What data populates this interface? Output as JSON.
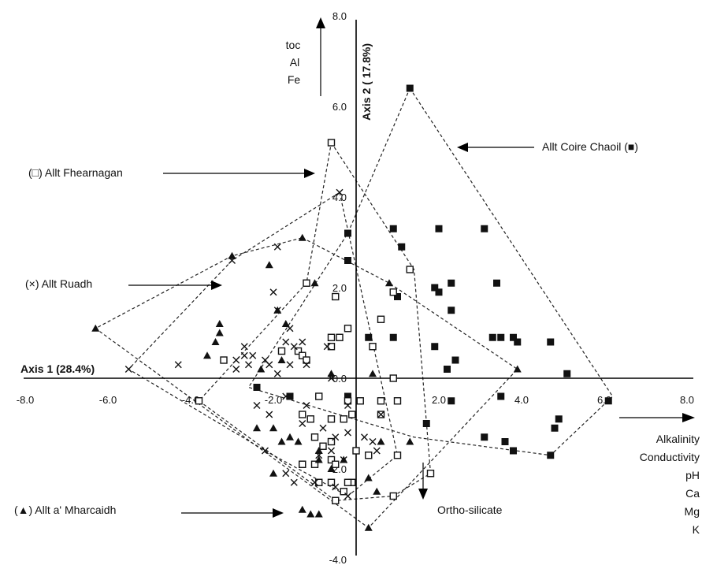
{
  "chart_data": {
    "type": "scatter",
    "title": "",
    "xlim": [
      -8,
      8
    ],
    "ylim": [
      -4,
      8
    ],
    "x_ticks": [
      "-8.0",
      "-6.0",
      "-4.0",
      "-2.0",
      "0.0",
      "2.0",
      "4.0",
      "6.0",
      "8.0"
    ],
    "y_ticks": [
      "-4.0",
      "-2.0",
      "0.0",
      "2.0",
      "4.0",
      "6.0",
      "8.0"
    ],
    "x_tick_values": [
      -8,
      -6,
      -4,
      -2,
      0,
      2,
      4,
      6,
      8
    ],
    "y_tick_values": [
      -4,
      -2,
      0,
      2,
      4,
      6,
      8
    ],
    "xlabel": "Axis 1 (28.4%)",
    "ylabel": "Axis 2 ( 17.8%)",
    "vectors": {
      "up": [
        "toc",
        "Al",
        "Fe"
      ],
      "right": [
        "Alkalinity",
        "Conductivity",
        "pH",
        "Ca",
        "Mg",
        "K"
      ],
      "down": [
        "Ortho-silicate"
      ]
    },
    "series": [
      {
        "name": "Allt Coire Chaoil",
        "legend": "Allt Coire Chaoil (■)",
        "marker": "filled-square",
        "points": [
          [
            1.3,
            6.4
          ],
          [
            0.9,
            3.3
          ],
          [
            1.1,
            2.9
          ],
          [
            2.0,
            3.3
          ],
          [
            3.1,
            3.3
          ],
          [
            -0.2,
            3.2
          ],
          [
            -0.2,
            2.6
          ],
          [
            1.9,
            2.0
          ],
          [
            2.3,
            2.1
          ],
          [
            3.4,
            2.1
          ],
          [
            2.0,
            1.9
          ],
          [
            1.0,
            1.8
          ],
          [
            2.3,
            1.5
          ],
          [
            0.9,
            0.9
          ],
          [
            0.3,
            0.9
          ],
          [
            3.3,
            0.9
          ],
          [
            3.5,
            0.9
          ],
          [
            3.8,
            0.9
          ],
          [
            3.9,
            0.8
          ],
          [
            4.7,
            0.8
          ],
          [
            1.9,
            0.7
          ],
          [
            2.4,
            0.4
          ],
          [
            2.2,
            0.2
          ],
          [
            5.1,
            0.1
          ],
          [
            -2.4,
            -0.2
          ],
          [
            -1.6,
            -0.4
          ],
          [
            -0.2,
            -0.4
          ],
          [
            2.3,
            -0.5
          ],
          [
            3.5,
            -0.4
          ],
          [
            6.1,
            -0.5
          ],
          [
            4.9,
            -0.9
          ],
          [
            1.7,
            -1.0
          ],
          [
            4.8,
            -1.1
          ],
          [
            3.1,
            -1.3
          ],
          [
            3.6,
            -1.4
          ],
          [
            3.8,
            -1.6
          ],
          [
            4.7,
            -1.7
          ]
        ]
      },
      {
        "name": "Allt Fhearnagan",
        "legend": "(□) Allt Fhearnagan",
        "marker": "open-square",
        "points": [
          [
            -0.6,
            5.2
          ],
          [
            1.3,
            2.4
          ],
          [
            -1.2,
            2.1
          ],
          [
            -0.5,
            1.8
          ],
          [
            0.9,
            1.9
          ],
          [
            -0.2,
            1.1
          ],
          [
            0.6,
            1.3
          ],
          [
            -0.6,
            0.9
          ],
          [
            -0.4,
            0.9
          ],
          [
            -0.6,
            0.7
          ],
          [
            0.4,
            0.7
          ],
          [
            -1.8,
            0.6
          ],
          [
            -1.4,
            0.6
          ],
          [
            -1.3,
            0.5
          ],
          [
            -1.2,
            0.4
          ],
          [
            -3.2,
            0.4
          ],
          [
            0.9,
            0.0
          ],
          [
            -3.8,
            -0.5
          ],
          [
            -0.9,
            -0.4
          ],
          [
            -0.2,
            -0.5
          ],
          [
            0.1,
            -0.5
          ],
          [
            0.6,
            -0.5
          ],
          [
            1.0,
            -0.5
          ],
          [
            0.6,
            -0.8
          ],
          [
            -0.1,
            -0.8
          ],
          [
            -0.3,
            -0.9
          ],
          [
            -1.3,
            -0.8
          ],
          [
            -1.1,
            -0.9
          ],
          [
            -0.6,
            -0.9
          ],
          [
            -1.0,
            -1.3
          ],
          [
            -0.8,
            -1.5
          ],
          [
            -0.6,
            -1.4
          ],
          [
            0.0,
            -1.6
          ],
          [
            0.3,
            -1.7
          ],
          [
            1.0,
            -1.7
          ],
          [
            -0.6,
            -1.8
          ],
          [
            -1.3,
            -1.9
          ],
          [
            -1.3,
            -1.9
          ],
          [
            -0.5,
            -1.9
          ],
          [
            -1.0,
            -1.9
          ],
          [
            -0.9,
            -2.3
          ],
          [
            -0.1,
            -2.3
          ],
          [
            1.8,
            -2.1
          ],
          [
            -0.6,
            -2.3
          ],
          [
            -0.2,
            -2.3
          ],
          [
            -0.3,
            -2.5
          ],
          [
            -0.5,
            -2.7
          ],
          [
            0.9,
            -2.6
          ]
        ]
      },
      {
        "name": "Allt Ruadh",
        "legend": "(×) Allt Ruadh",
        "marker": "cross",
        "points": [
          [
            -0.4,
            4.1
          ],
          [
            -3.0,
            2.6
          ],
          [
            -1.9,
            2.9
          ],
          [
            -2.0,
            1.9
          ],
          [
            -1.9,
            1.5
          ],
          [
            -1.6,
            1.1
          ],
          [
            -1.3,
            0.8
          ],
          [
            -0.7,
            0.7
          ],
          [
            -1.7,
            0.8
          ],
          [
            -1.5,
            0.7
          ],
          [
            -2.7,
            0.7
          ],
          [
            -2.7,
            0.5
          ],
          [
            -2.5,
            0.5
          ],
          [
            -2.9,
            0.4
          ],
          [
            -2.6,
            0.3
          ],
          [
            -2.2,
            0.4
          ],
          [
            -2.1,
            0.3
          ],
          [
            -2.9,
            0.2
          ],
          [
            -4.3,
            0.3
          ],
          [
            -5.5,
            0.2
          ],
          [
            -1.9,
            0.1
          ],
          [
            -1.6,
            0.3
          ],
          [
            -1.2,
            0.3
          ],
          [
            -0.6,
            0.0
          ],
          [
            -2.4,
            -0.6
          ],
          [
            -2.1,
            -0.8
          ],
          [
            -1.7,
            -0.4
          ],
          [
            -1.2,
            -0.6
          ],
          [
            -0.2,
            -0.6
          ],
          [
            0.6,
            -0.8
          ],
          [
            -1.3,
            -1.0
          ],
          [
            -0.8,
            -1.1
          ],
          [
            -0.2,
            -1.2
          ],
          [
            -0.5,
            -1.3
          ],
          [
            0.2,
            -1.3
          ],
          [
            -0.6,
            -1.6
          ],
          [
            -0.9,
            -1.7
          ],
          [
            0.5,
            -1.6
          ],
          [
            -2.2,
            -1.6
          ],
          [
            -1.7,
            -2.1
          ],
          [
            -1.0,
            -2.3
          ],
          [
            -0.5,
            -2.4
          ],
          [
            -0.2,
            -2.6
          ],
          [
            -1.5,
            -2.3
          ],
          [
            -0.3,
            -1.8
          ],
          [
            0.4,
            -1.4
          ]
        ]
      },
      {
        "name": "Allt a' Mharcaidh",
        "legend": "(▲) Allt a' Mharcaidh",
        "marker": "filled-triangle",
        "points": [
          [
            -6.3,
            1.1
          ],
          [
            -3.0,
            2.7
          ],
          [
            -1.3,
            3.1
          ],
          [
            -2.1,
            2.5
          ],
          [
            -1.0,
            2.1
          ],
          [
            0.8,
            2.1
          ],
          [
            -1.9,
            1.5
          ],
          [
            -3.3,
            1.2
          ],
          [
            -3.3,
            1.0
          ],
          [
            -1.7,
            1.2
          ],
          [
            -3.4,
            0.8
          ],
          [
            -3.6,
            0.5
          ],
          [
            -1.8,
            0.4
          ],
          [
            -2.3,
            0.2
          ],
          [
            -0.6,
            0.1
          ],
          [
            0.4,
            0.1
          ],
          [
            3.9,
            0.2
          ],
          [
            -2.4,
            -1.1
          ],
          [
            -2.0,
            -1.1
          ],
          [
            -1.6,
            -1.3
          ],
          [
            -1.8,
            -1.4
          ],
          [
            -1.4,
            -1.4
          ],
          [
            -0.9,
            -1.6
          ],
          [
            -0.9,
            -1.8
          ],
          [
            -0.6,
            -2.0
          ],
          [
            -0.3,
            -1.8
          ],
          [
            0.6,
            -1.4
          ],
          [
            1.3,
            -1.4
          ],
          [
            0.3,
            -2.2
          ],
          [
            0.5,
            -2.5
          ],
          [
            -2.0,
            -2.1
          ],
          [
            -0.9,
            -3.0
          ],
          [
            0.3,
            -3.3
          ],
          [
            -1.3,
            -2.9
          ],
          [
            -1.1,
            -3.0
          ]
        ]
      }
    ],
    "hulls": [
      {
        "name": "Allt Coire Chaoil",
        "vertices": [
          [
            1.3,
            6.4
          ],
          [
            6.2,
            -0.4
          ],
          [
            4.7,
            -1.7
          ],
          [
            1.4,
            -1.3
          ],
          [
            -2.6,
            -0.2
          ],
          [
            -0.2,
            3.2
          ]
        ]
      },
      {
        "name": "Allt Fhearnagan",
        "vertices": [
          [
            -0.6,
            5.2
          ],
          [
            1.4,
            2.4
          ],
          [
            1.8,
            -2.1
          ],
          [
            0.9,
            -2.6
          ],
          [
            -0.5,
            -2.7
          ],
          [
            -3.8,
            -0.5
          ],
          [
            -1.2,
            2.1
          ]
        ]
      },
      {
        "name": "Allt Ruadh",
        "vertices": [
          [
            -0.4,
            4.1
          ],
          [
            1.0,
            -1.7
          ],
          [
            -0.2,
            -2.6
          ],
          [
            -2.2,
            -1.6
          ],
          [
            -5.5,
            0.2
          ],
          [
            -3.0,
            2.6
          ]
        ]
      },
      {
        "name": "Allt a' Mharcaidh",
        "vertices": [
          [
            -1.3,
            3.1
          ],
          [
            0.8,
            2.1
          ],
          [
            3.9,
            0.2
          ],
          [
            0.3,
            -3.3
          ],
          [
            -6.3,
            1.1
          ],
          [
            -3.0,
            2.7
          ]
        ]
      }
    ]
  }
}
